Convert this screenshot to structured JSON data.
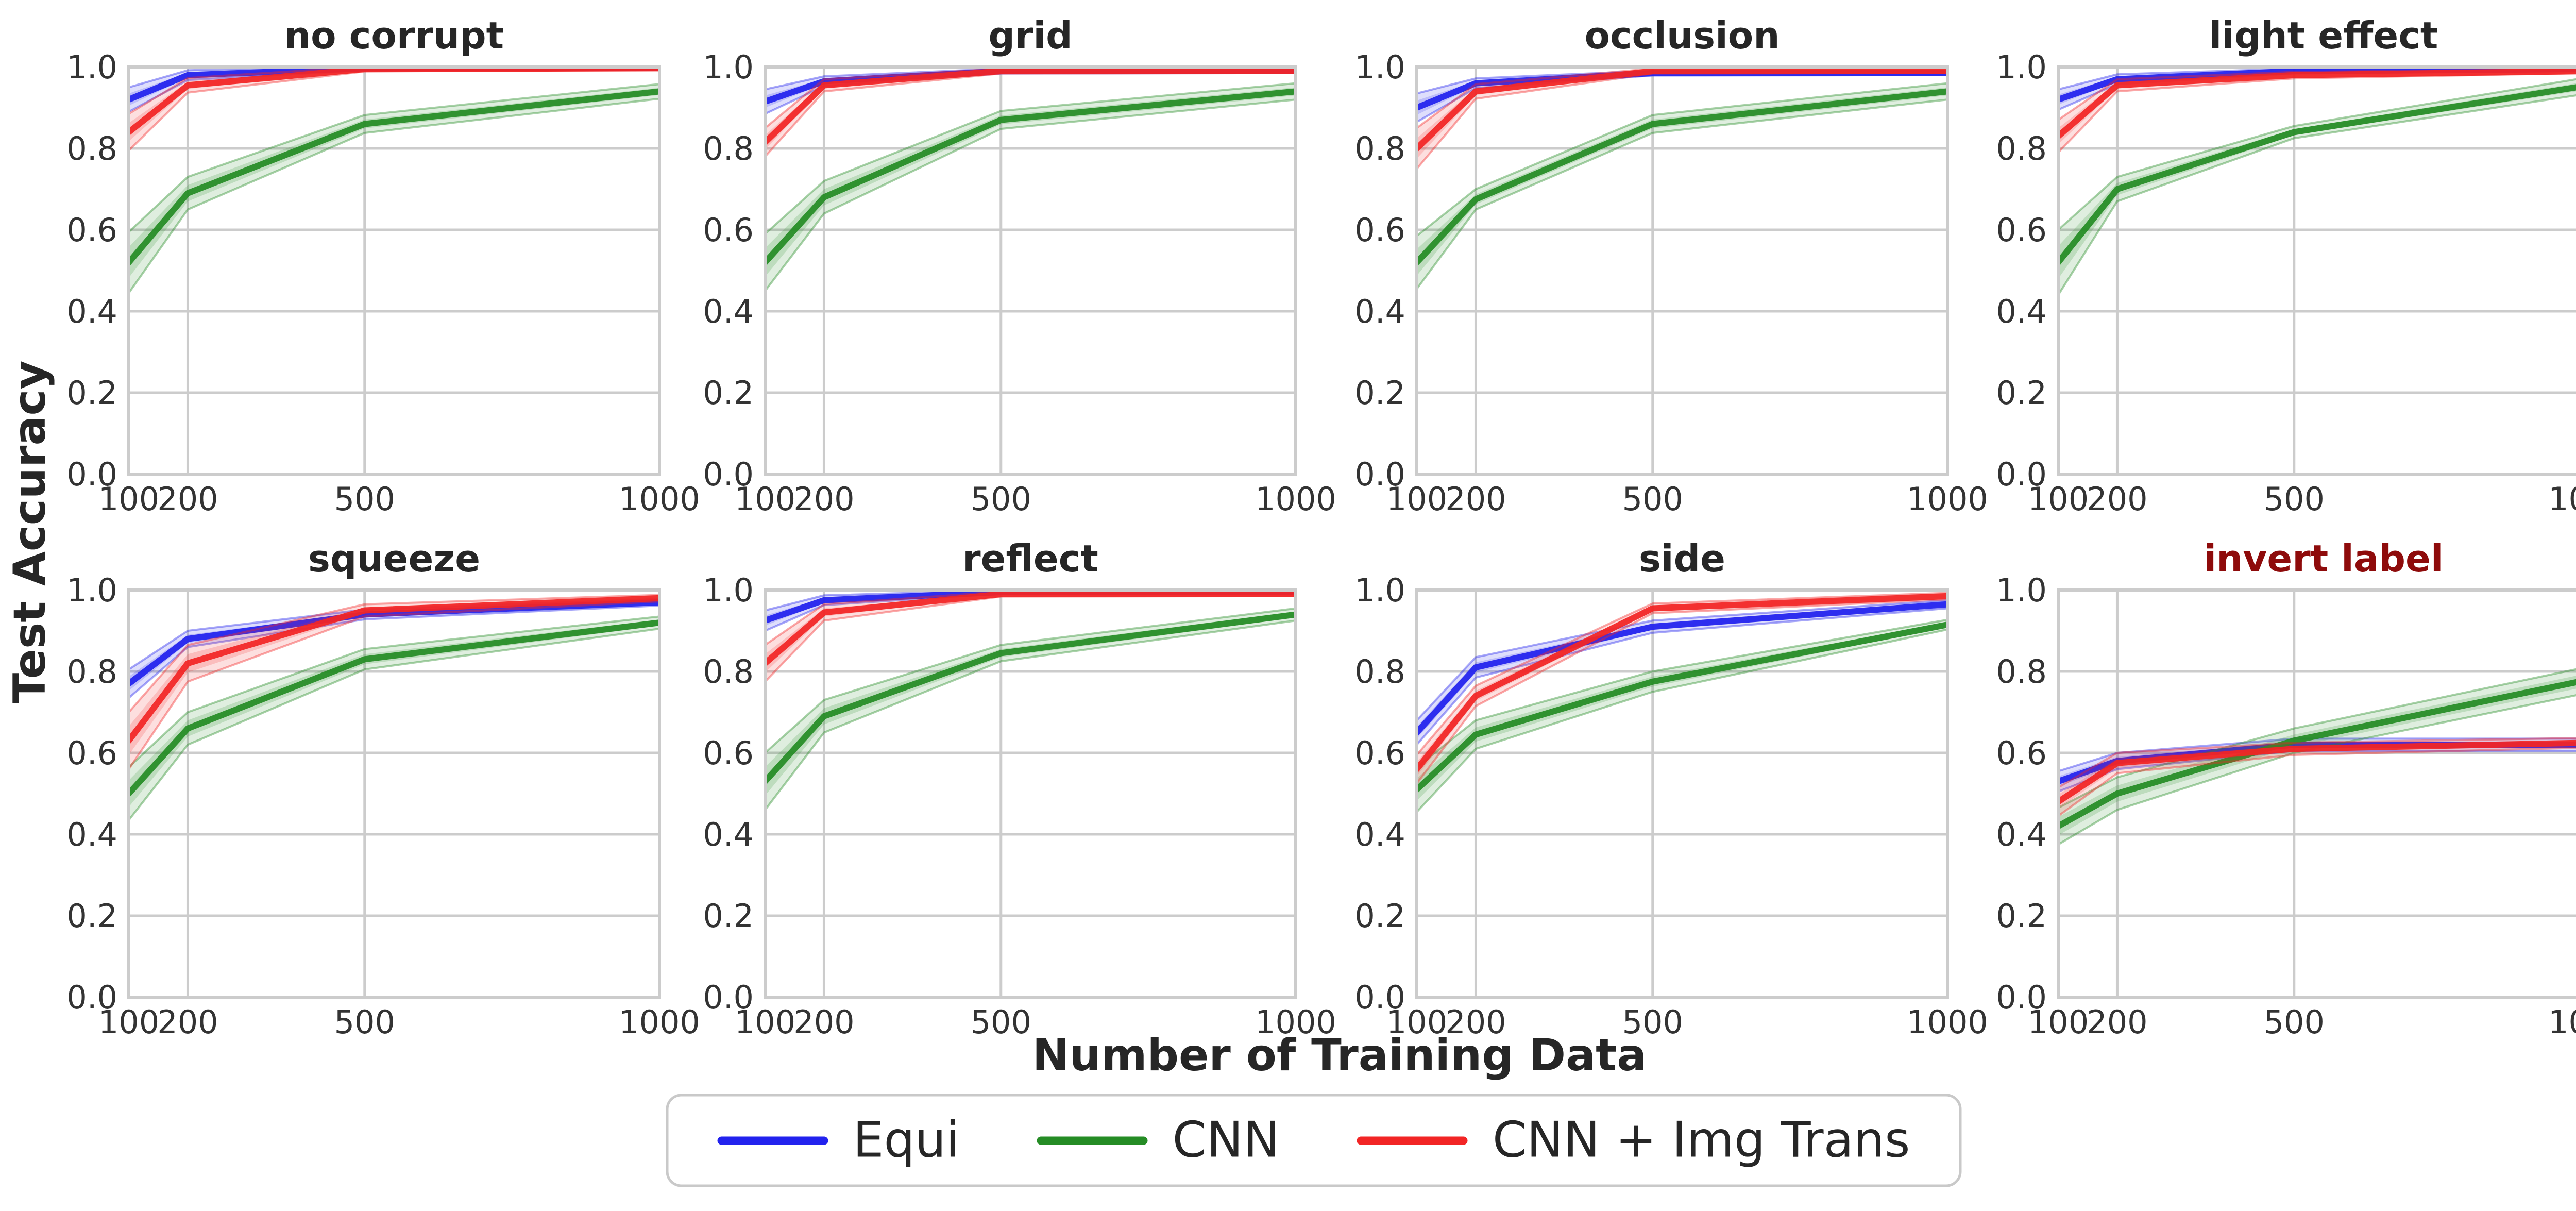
{
  "figure": {
    "xlabel": "Number of Training Data",
    "ylabel": "Test Accuracy"
  },
  "chart_data": {
    "type": "line",
    "layout": {
      "rows": 2,
      "cols": 4
    },
    "x": [
      100,
      200,
      500,
      1000
    ],
    "xlim": [
      100,
      1000
    ],
    "ylim": [
      0.0,
      1.0
    ],
    "xticks": [
      100,
      200,
      500,
      1000
    ],
    "xtick_labels": [
      "100",
      "200",
      "500",
      "1000"
    ],
    "yticks": [
      0.0,
      0.2,
      0.4,
      0.6,
      0.8,
      1.0
    ],
    "ytick_labels": [
      "0.0",
      "0.2",
      "0.4",
      "0.6",
      "0.8",
      "1.0"
    ],
    "grid": true,
    "grid_color": "#cccccc",
    "xlabel": "Number of Training Data",
    "ylabel": "Test Accuracy",
    "legend": {
      "position": "bottom-center",
      "entries": [
        {
          "label": "Equi",
          "color": "#2222ee"
        },
        {
          "label": "CNN",
          "color": "#258c25"
        },
        {
          "label": "CNN + Img Trans",
          "color": "#f22525"
        }
      ]
    },
    "subplots": [
      {
        "title": "no corrupt",
        "title_color": "#262626",
        "series": [
          {
            "name": "Equi",
            "color": "#2222ee",
            "values": [
              0.92,
              0.98,
              0.997,
              0.998
            ],
            "err": [
              0.03,
              0.012,
              0.005,
              0.004
            ]
          },
          {
            "name": "CNN",
            "color": "#258c25",
            "values": [
              0.52,
              0.69,
              0.86,
              0.94
            ],
            "err": [
              0.075,
              0.04,
              0.022,
              0.018
            ]
          },
          {
            "name": "CNN + Img Trans",
            "color": "#f22525",
            "values": [
              0.84,
              0.955,
              0.995,
              0.997
            ],
            "err": [
              0.045,
              0.018,
              0.006,
              0.004
            ]
          }
        ]
      },
      {
        "title": "grid",
        "title_color": "#262626",
        "series": [
          {
            "name": "Equi",
            "color": "#2222ee",
            "values": [
              0.915,
              0.965,
              0.99,
              0.99
            ],
            "err": [
              0.03,
              0.012,
              0.006,
              0.005
            ]
          },
          {
            "name": "CNN",
            "color": "#258c25",
            "values": [
              0.52,
              0.68,
              0.87,
              0.94
            ],
            "err": [
              0.07,
              0.04,
              0.022,
              0.02
            ]
          },
          {
            "name": "CNN + Img Trans",
            "color": "#f22525",
            "values": [
              0.815,
              0.955,
              0.99,
              0.99
            ],
            "err": [
              0.035,
              0.015,
              0.006,
              0.005
            ]
          }
        ]
      },
      {
        "title": "occlusion",
        "title_color": "#262626",
        "series": [
          {
            "name": "Equi",
            "color": "#2222ee",
            "values": [
              0.9,
              0.96,
              0.985,
              0.985
            ],
            "err": [
              0.035,
              0.012,
              0.006,
              0.005
            ]
          },
          {
            "name": "CNN",
            "color": "#258c25",
            "values": [
              0.52,
              0.675,
              0.86,
              0.94
            ],
            "err": [
              0.065,
              0.025,
              0.022,
              0.02
            ]
          },
          {
            "name": "CNN + Img Trans",
            "color": "#f22525",
            "values": [
              0.8,
              0.94,
              0.99,
              0.99
            ],
            "err": [
              0.05,
              0.018,
              0.006,
              0.005
            ]
          }
        ]
      },
      {
        "title": "light effect",
        "title_color": "#262626",
        "series": [
          {
            "name": "Equi",
            "color": "#2222ee",
            "values": [
              0.92,
              0.97,
              0.99,
              0.995
            ],
            "err": [
              0.025,
              0.012,
              0.006,
              0.004
            ]
          },
          {
            "name": "CNN",
            "color": "#258c25",
            "values": [
              0.52,
              0.7,
              0.84,
              0.955
            ],
            "err": [
              0.08,
              0.03,
              0.015,
              0.02
            ]
          },
          {
            "name": "CNN + Img Trans",
            "color": "#f22525",
            "values": [
              0.83,
              0.955,
              0.98,
              0.99
            ],
            "err": [
              0.04,
              0.015,
              0.008,
              0.005
            ]
          }
        ]
      },
      {
        "title": "squeeze",
        "title_color": "#262626",
        "series": [
          {
            "name": "Equi",
            "color": "#2222ee",
            "values": [
              0.77,
              0.88,
              0.94,
              0.97
            ],
            "err": [
              0.035,
              0.02,
              0.012,
              0.008
            ]
          },
          {
            "name": "CNN",
            "color": "#258c25",
            "values": [
              0.5,
              0.66,
              0.83,
              0.92
            ],
            "err": [
              0.065,
              0.04,
              0.025,
              0.015
            ]
          },
          {
            "name": "CNN + Img Trans",
            "color": "#f22525",
            "values": [
              0.63,
              0.82,
              0.95,
              0.98
            ],
            "err": [
              0.07,
              0.045,
              0.015,
              0.008
            ]
          }
        ]
      },
      {
        "title": "reflect",
        "title_color": "#262626",
        "series": [
          {
            "name": "Equi",
            "color": "#2222ee",
            "values": [
              0.925,
              0.975,
              0.995,
              0.995
            ],
            "err": [
              0.025,
              0.012,
              0.004,
              0.004
            ]
          },
          {
            "name": "CNN",
            "color": "#258c25",
            "values": [
              0.53,
              0.69,
              0.845,
              0.94
            ],
            "err": [
              0.07,
              0.04,
              0.02,
              0.015
            ]
          },
          {
            "name": "CNN + Img Trans",
            "color": "#f22525",
            "values": [
              0.82,
              0.945,
              0.99,
              0.99
            ],
            "err": [
              0.045,
              0.02,
              0.006,
              0.005
            ]
          }
        ]
      },
      {
        "title": "side",
        "title_color": "#262626",
        "series": [
          {
            "name": "Equi",
            "color": "#2222ee",
            "values": [
              0.65,
              0.81,
              0.91,
              0.965
            ],
            "err": [
              0.03,
              0.025,
              0.015,
              0.01
            ]
          },
          {
            "name": "CNN",
            "color": "#258c25",
            "values": [
              0.51,
              0.645,
              0.775,
              0.915
            ],
            "err": [
              0.055,
              0.035,
              0.025,
              0.012
            ]
          },
          {
            "name": "CNN + Img Trans",
            "color": "#f22525",
            "values": [
              0.56,
              0.74,
              0.955,
              0.985
            ],
            "err": [
              0.035,
              0.025,
              0.012,
              0.008
            ]
          }
        ]
      },
      {
        "title": "invert label",
        "title_color": "#8e0b0b",
        "series": [
          {
            "name": "Equi",
            "color": "#2222ee",
            "values": [
              0.53,
              0.58,
              0.62,
              0.62
            ],
            "err": [
              0.025,
              0.02,
              0.015,
              0.015
            ]
          },
          {
            "name": "CNN",
            "color": "#258c25",
            "values": [
              0.42,
              0.5,
              0.63,
              0.78
            ],
            "err": [
              0.045,
              0.04,
              0.03,
              0.032
            ]
          },
          {
            "name": "CNN + Img Trans",
            "color": "#f22525",
            "values": [
              0.48,
              0.575,
              0.61,
              0.625
            ],
            "err": [
              0.035,
              0.025,
              0.015,
              0.012
            ]
          }
        ]
      }
    ]
  }
}
